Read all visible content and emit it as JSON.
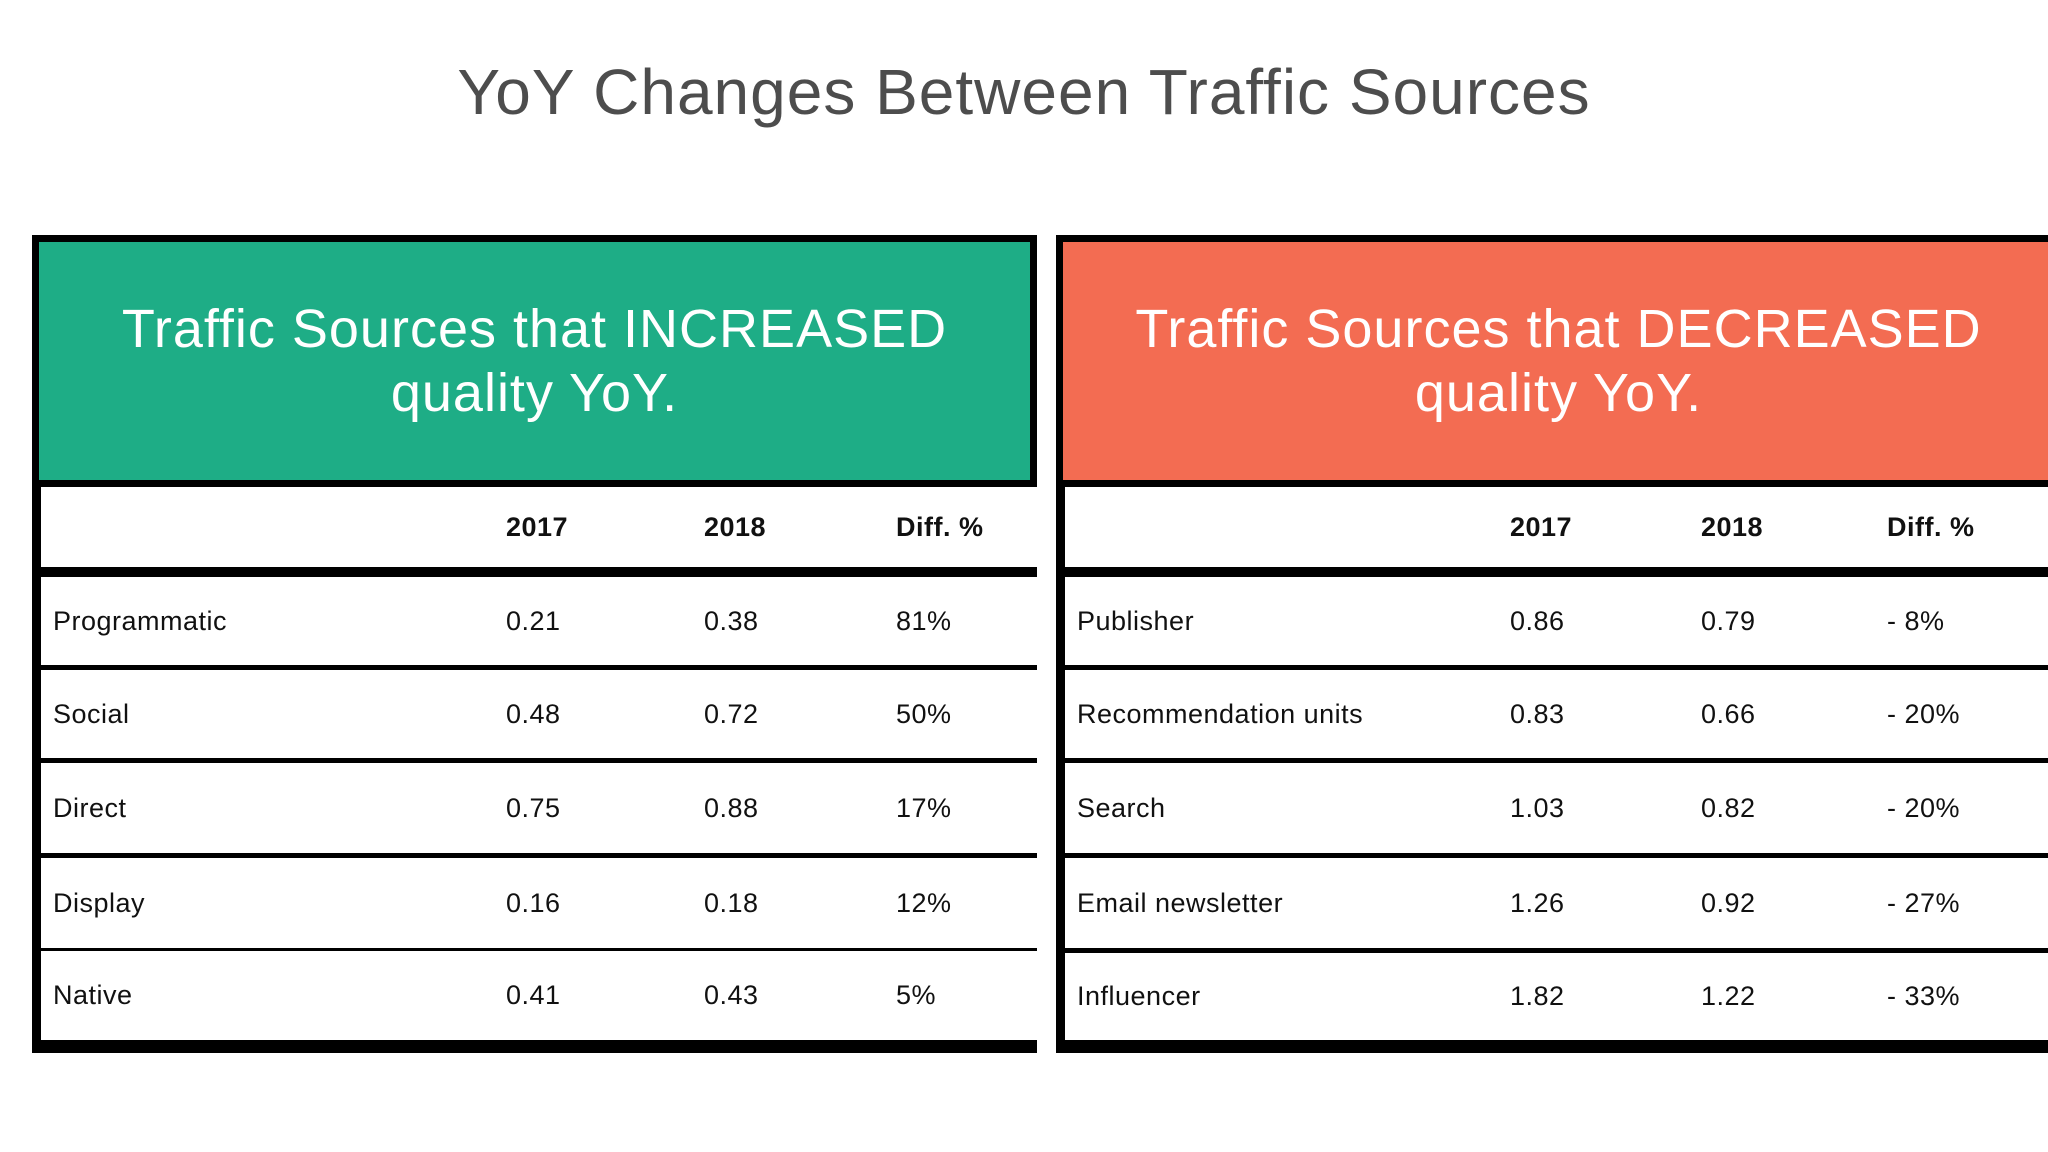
{
  "title": "YoY Changes Between Traffic Sources",
  "colors": {
    "increased_header": "#1ead86",
    "decreased_header": "#f36c52",
    "border": "#000000",
    "title_text": "#4d4d4d"
  },
  "increased": {
    "header_line1": "Traffic Sources that INCREASED",
    "header_line2": "quality YoY.",
    "columns": [
      "",
      "2017",
      "2018",
      "Diff. %"
    ],
    "rows": [
      {
        "name": "Programmatic",
        "y2017": "0.21",
        "y2018": "0.38",
        "diff": "81%"
      },
      {
        "name": "Social",
        "y2017": "0.48",
        "y2018": "0.72",
        "diff": "50%"
      },
      {
        "name": "Direct",
        "y2017": "0.75",
        "y2018": "0.88",
        "diff": "17%"
      },
      {
        "name": "Display",
        "y2017": "0.16",
        "y2018": "0.18",
        "diff": "12%"
      },
      {
        "name": "Native",
        "y2017": "0.41",
        "y2018": "0.43",
        "diff": "5%"
      }
    ]
  },
  "decreased": {
    "header_line1": "Traffic Sources that DECREASED",
    "header_line2": "quality YoY.",
    "columns": [
      "",
      "2017",
      "2018",
      "Diff. %"
    ],
    "rows": [
      {
        "name": "Publisher",
        "y2017": "0.86",
        "y2018": "0.79",
        "diff": "- 8%"
      },
      {
        "name": "Recommendation units",
        "y2017": "0.83",
        "y2018": "0.66",
        "diff": "- 20%"
      },
      {
        "name": "Search",
        "y2017": "1.03",
        "y2018": "0.82",
        "diff": "- 20%"
      },
      {
        "name": "Email newsletter",
        "y2017": "1.26",
        "y2018": "0.92",
        "diff": "- 27%"
      },
      {
        "name": "Influencer",
        "y2017": "1.82",
        "y2018": "1.22",
        "diff": "- 33%"
      }
    ]
  }
}
